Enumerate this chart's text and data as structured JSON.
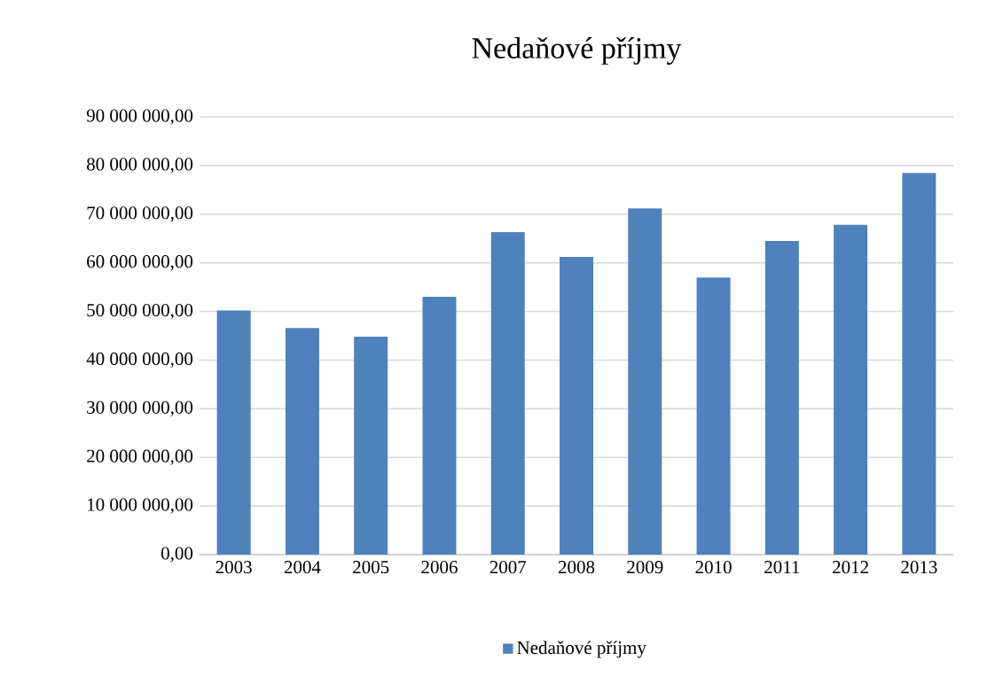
{
  "chart_data": {
    "type": "bar",
    "title": "Nedaňové příjmy",
    "categories": [
      "2003",
      "2004",
      "2005",
      "2006",
      "2007",
      "2008",
      "2009",
      "2010",
      "2011",
      "2012",
      "2013"
    ],
    "series": [
      {
        "name": "Nedaňové příjmy",
        "color": "#4f81bd",
        "values": [
          50200000,
          46600000,
          44800000,
          53000000,
          66300000,
          61200000,
          71200000,
          57000000,
          64500000,
          67800000,
          78500000
        ]
      }
    ],
    "ylim": [
      0,
      90000000
    ],
    "yticks": [
      {
        "value": 0,
        "label": "0,00"
      },
      {
        "value": 10000000,
        "label": "10 000 000,00"
      },
      {
        "value": 20000000,
        "label": "20 000 000,00"
      },
      {
        "value": 30000000,
        "label": "30 000 000,00"
      },
      {
        "value": 40000000,
        "label": "40 000 000,00"
      },
      {
        "value": 50000000,
        "label": "50 000 000,00"
      },
      {
        "value": 60000000,
        "label": "60 000 000,00"
      },
      {
        "value": 70000000,
        "label": "70 000 000,00"
      },
      {
        "value": 80000000,
        "label": "80 000 000,00"
      },
      {
        "value": 90000000,
        "label": "90 000 000,00"
      }
    ],
    "grid": "y",
    "legend": "bottom"
  }
}
